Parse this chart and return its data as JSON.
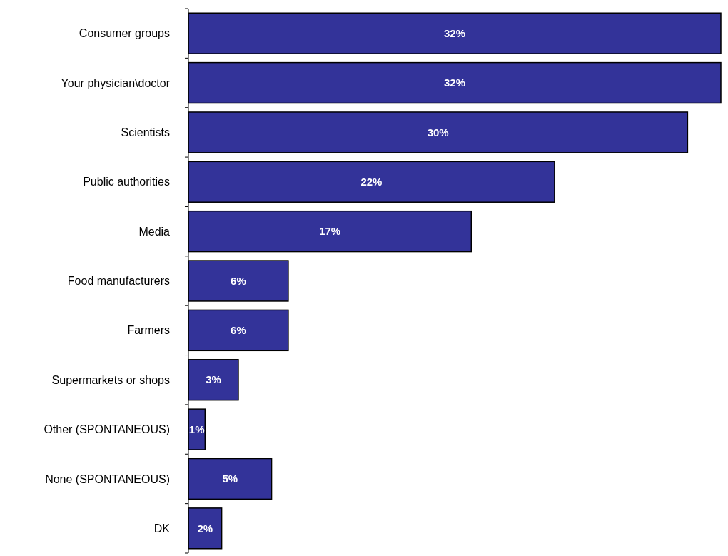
{
  "chart_data": {
    "type": "bar",
    "orientation": "horizontal",
    "categories": [
      "Consumer groups",
      "Your physician\\doctor",
      "Scientists",
      "Public authorities",
      "Media",
      "Food manufacturers",
      "Farmers",
      "Supermarkets or shops",
      "Other (SPONTANEOUS)",
      "None (SPONTANEOUS)",
      "DK"
    ],
    "values": [
      32,
      32,
      30,
      22,
      17,
      6,
      6,
      3,
      1,
      5,
      2
    ],
    "value_labels": [
      "32%",
      "32%",
      "30%",
      "22%",
      "17%",
      "6%",
      "6%",
      "3%",
      "1%",
      "5%",
      "2%"
    ],
    "color": "#333399"
  }
}
